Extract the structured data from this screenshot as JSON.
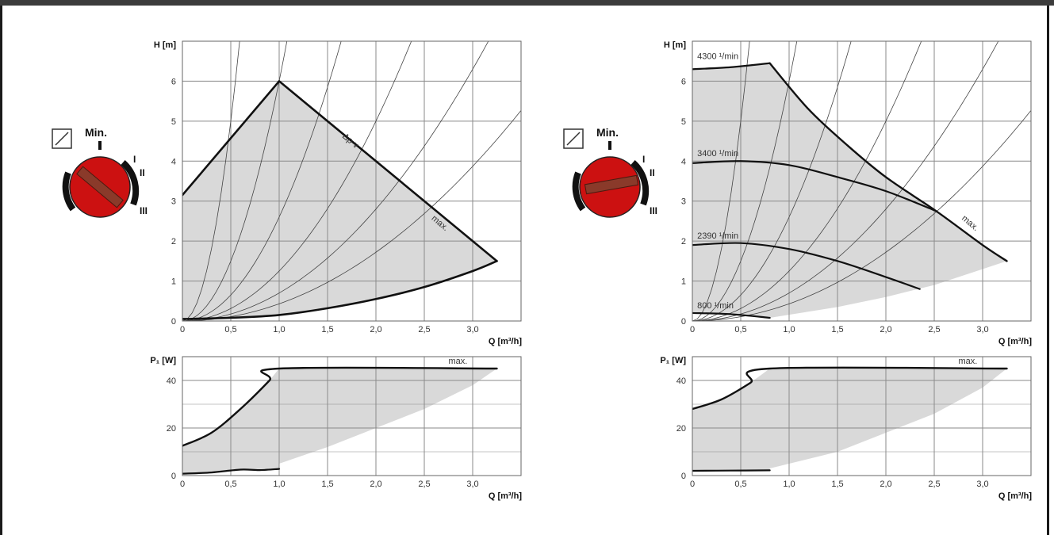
{
  "chart_data": [
    {
      "id": "left-head",
      "type": "area",
      "xlabel": "Q [m³/h]",
      "ylabel": "H [m]",
      "xlim": [
        0,
        3.5
      ],
      "ylim": [
        0,
        7
      ],
      "x_ticks": [
        "0",
        "0,5",
        "1,0",
        "1,5",
        "2,0",
        "2,5",
        "3,0"
      ],
      "y_ticks": [
        "0",
        "1",
        "2",
        "3",
        "4",
        "5",
        "6"
      ],
      "grid": true,
      "envelope": {
        "name": "max.",
        "x": [
          0,
          1.0,
          3.25
        ],
        "y": [
          3.15,
          6.0,
          1.5
        ]
      },
      "min_curve": {
        "x": [
          0,
          0.5,
          1.0,
          1.5,
          2.0,
          2.5,
          3.0,
          3.25
        ],
        "y": [
          0.05,
          0.08,
          0.15,
          0.32,
          0.55,
          0.85,
          1.25,
          1.5
        ]
      },
      "system_curves_k": [
        20,
        6,
        2.6,
        1.25,
        0.7,
        0.43
      ],
      "annotations": [
        "Δp-v",
        "max."
      ]
    },
    {
      "id": "left-power",
      "type": "area",
      "xlabel": "Q [m³/h]",
      "ylabel": "P₁ [W]",
      "xlim": [
        0,
        3.5
      ],
      "ylim": [
        0,
        50
      ],
      "x_ticks": [
        "0",
        "0,5",
        "1,0",
        "1,5",
        "2,0",
        "2,5",
        "3,0"
      ],
      "y_ticks": [
        "0",
        "20",
        "40"
      ],
      "grid": true,
      "max_curve": {
        "name": "max.",
        "x": [
          0,
          0.3,
          0.6,
          0.9,
          1.0,
          3.25
        ],
        "y": [
          12.5,
          18,
          28,
          40,
          45,
          45
        ]
      },
      "min_curve": {
        "x": [
          0,
          0.3,
          0.6,
          0.8,
          1.0
        ],
        "y": [
          0.8,
          1.3,
          2.5,
          2.3,
          2.8
        ]
      },
      "shade_lower": {
        "x": [
          1.0,
          1.5,
          2.0,
          2.5,
          3.0,
          3.25
        ],
        "y": [
          5,
          12,
          20,
          28,
          38,
          45
        ]
      },
      "annotations": [
        "max."
      ]
    },
    {
      "id": "right-head",
      "type": "line",
      "xlabel": "Q [m³/h]",
      "ylabel": "H [m]",
      "xlim": [
        0,
        3.5
      ],
      "ylim": [
        0,
        7
      ],
      "x_ticks": [
        "0",
        "0,5",
        "1,0",
        "1,5",
        "2,0",
        "2,5",
        "3,0"
      ],
      "y_ticks": [
        "0",
        "1",
        "2",
        "3",
        "4",
        "5",
        "6"
      ],
      "grid": true,
      "series": [
        {
          "name": "4300 ¹/min",
          "x": [
            0,
            0.4,
            0.8
          ],
          "y": [
            6.3,
            6.35,
            6.45
          ]
        },
        {
          "name": "3400 ¹/min",
          "x": [
            0,
            0.5,
            1.0,
            1.5,
            2.0,
            2.52
          ],
          "y": [
            3.95,
            4.0,
            3.9,
            3.6,
            3.25,
            2.75
          ]
        },
        {
          "name": "2390 ¹/min",
          "x": [
            0,
            0.5,
            1.0,
            1.5,
            2.0,
            2.35
          ],
          "y": [
            1.9,
            1.95,
            1.8,
            1.5,
            1.1,
            0.8
          ]
        },
        {
          "name": "800 ¹/min",
          "x": [
            0,
            0.4,
            0.8
          ],
          "y": [
            0.2,
            0.17,
            0.08
          ]
        }
      ],
      "max_curve": {
        "name": "max.",
        "x": [
          0.8,
          1.2,
          1.6,
          2.0,
          2.52,
          3.0,
          3.25
        ],
        "y": [
          6.45,
          5.3,
          4.4,
          3.6,
          2.75,
          1.9,
          1.5
        ]
      },
      "shade_lower": {
        "x": [
          0.8,
          1.5,
          2.0,
          2.5,
          3.0,
          3.25
        ],
        "y": [
          0.08,
          0.35,
          0.6,
          0.9,
          1.3,
          1.5
        ]
      },
      "system_curves_k": [
        20,
        6,
        2.6,
        1.25,
        0.7,
        0.43
      ],
      "annotations": [
        "max."
      ]
    },
    {
      "id": "right-power",
      "type": "area",
      "xlabel": "Q [m³/h]",
      "ylabel": "P₁ [W]",
      "xlim": [
        0,
        3.5
      ],
      "ylim": [
        0,
        50
      ],
      "x_ticks": [
        "0",
        "0,5",
        "1,0",
        "1,5",
        "2,0",
        "2,5",
        "3,0"
      ],
      "y_ticks": [
        "0",
        "20",
        "40"
      ],
      "grid": true,
      "max_curve": {
        "name": "max.",
        "x": [
          0,
          0.3,
          0.6,
          0.8,
          3.25
        ],
        "y": [
          28,
          32,
          39,
          45,
          45
        ]
      },
      "min_curve": {
        "x": [
          0,
          0.4,
          0.8
        ],
        "y": [
          2,
          2.1,
          2.2
        ]
      },
      "shade_lower": {
        "x": [
          0.8,
          1.5,
          2.0,
          2.5,
          3.0,
          3.25
        ],
        "y": [
          3,
          10,
          18,
          26,
          37,
          45
        ]
      },
      "annotations": [
        "max."
      ]
    }
  ],
  "knobs": {
    "min_label": "Min.",
    "roman": [
      "I",
      "II",
      "III"
    ],
    "knob_color": "#cc1111",
    "pointer_color": "#8a3a2a"
  }
}
